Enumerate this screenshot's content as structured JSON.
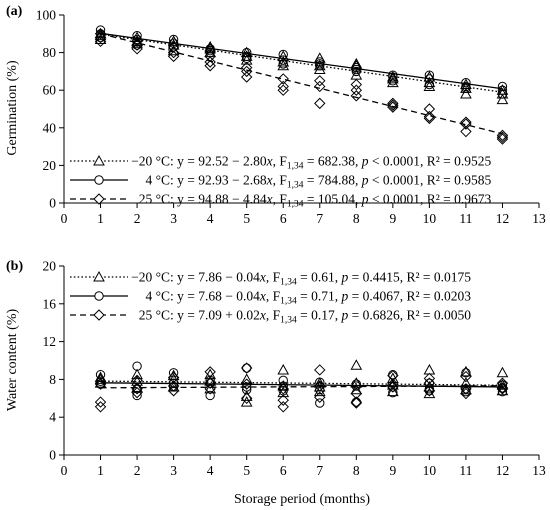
{
  "chart_data": [
    {
      "type": "scatter",
      "panel_label": "(a)",
      "ylabel": "Germination (%)",
      "xlim": [
        0,
        13
      ],
      "ylim": [
        0,
        100
      ],
      "xticks": [
        0,
        1,
        2,
        3,
        4,
        5,
        6,
        7,
        8,
        9,
        10,
        11,
        12,
        13
      ],
      "yticks": [
        0,
        20,
        40,
        60,
        80,
        100
      ],
      "series": [
        {
          "marker": "triangle",
          "line": "dotted",
          "fit": {
            "intercept": 92.52,
            "slope": -2.8
          },
          "legend": {
            "temp": "−20 °C",
            "eq": ": y = 92.52 − 2.80",
            "fs": "682.38",
            "p": "< 0.0001",
            "r2": "= 0.9525"
          },
          "x": [
            1,
            1,
            1,
            2,
            2,
            2,
            3,
            3,
            3,
            4,
            4,
            4,
            5,
            5,
            5,
            6,
            6,
            6,
            7,
            7,
            7,
            8,
            8,
            8,
            9,
            9,
            9,
            10,
            10,
            10,
            11,
            11,
            11,
            12,
            12,
            12
          ],
          "y": [
            87,
            89,
            90,
            86,
            85,
            88,
            84,
            81,
            86,
            83,
            80,
            82,
            78,
            76,
            80,
            73,
            75,
            78,
            71,
            73,
            77,
            73,
            68,
            74,
            66,
            67,
            64,
            62,
            64,
            67,
            58,
            61,
            63,
            55,
            58,
            60
          ]
        },
        {
          "marker": "circle",
          "line": "solid",
          "fit": {
            "intercept": 92.93,
            "slope": -2.68
          },
          "legend": {
            "temp": "4 °C",
            "eq": ": y = 92.93 − 2.68",
            "fs": "784.88",
            "p": "< 0.0001",
            "r2": "= 0.9585"
          },
          "x": [
            1,
            1,
            1,
            2,
            2,
            2,
            3,
            3,
            3,
            4,
            4,
            4,
            5,
            5,
            5,
            6,
            6,
            6,
            7,
            7,
            7,
            8,
            8,
            8,
            9,
            9,
            9,
            10,
            10,
            10,
            11,
            11,
            11,
            12,
            12,
            12
          ],
          "y": [
            92,
            90,
            88,
            89,
            87,
            84,
            87,
            85,
            83,
            82,
            80,
            81,
            80,
            78,
            77,
            79,
            76,
            74,
            75,
            73,
            74,
            72,
            70,
            71,
            68,
            67,
            65,
            68,
            66,
            63,
            64,
            62,
            61,
            62,
            60,
            58
          ]
        },
        {
          "marker": "diamond",
          "line": "dashed",
          "fit": {
            "intercept": 94.88,
            "slope": -4.84
          },
          "legend": {
            "temp": "25 °C",
            "eq": ": y = 94.88 − 4.84",
            "fs": "105.04",
            "p": "< 0.0001",
            "r2": "= 0.9673"
          },
          "x": [
            1,
            1,
            1,
            2,
            2,
            2,
            3,
            3,
            3,
            4,
            4,
            4,
            5,
            5,
            5,
            6,
            6,
            6,
            7,
            7,
            7,
            8,
            8,
            8,
            9,
            9,
            9,
            10,
            10,
            10,
            11,
            11,
            11,
            12,
            12,
            12
          ],
          "y": [
            88,
            86,
            90,
            84,
            82,
            86,
            80,
            78,
            83,
            75,
            73,
            78,
            70,
            72,
            67,
            66,
            62,
            60,
            65,
            62,
            53,
            63,
            57,
            60,
            53,
            51,
            52,
            50,
            46,
            45,
            43,
            38,
            42,
            36,
            34,
            35
          ]
        }
      ]
    },
    {
      "type": "scatter",
      "panel_label": "(b)",
      "ylabel": "Water content (%)",
      "xlabel": "Storage period (months)",
      "xlim": [
        0,
        13
      ],
      "ylim": [
        0,
        20
      ],
      "xticks": [
        0,
        1,
        2,
        3,
        4,
        5,
        6,
        7,
        8,
        9,
        10,
        11,
        12,
        13
      ],
      "yticks": [
        0,
        4,
        8,
        12,
        16,
        20
      ],
      "series": [
        {
          "marker": "triangle",
          "line": "dotted",
          "fit": {
            "intercept": 7.86,
            "slope": -0.04
          },
          "legend": {
            "temp": "−20 °C",
            "eq": ": y = 7.86 − 0.04",
            "fs": "0.61",
            "p": "= 0.4415",
            "r2": "= 0.0175"
          },
          "x": [
            1,
            1,
            1,
            2,
            2,
            2,
            3,
            3,
            3,
            4,
            4,
            4,
            5,
            5,
            5,
            6,
            6,
            6,
            7,
            7,
            7,
            8,
            8,
            8,
            9,
            9,
            9,
            10,
            10,
            10,
            11,
            11,
            11,
            12,
            12,
            12
          ],
          "y": [
            8.0,
            7.6,
            8.2,
            8.5,
            7.1,
            7.8,
            8.0,
            7.2,
            8.4,
            8.5,
            7.8,
            7.0,
            5.6,
            6.2,
            8.0,
            9.0,
            7.3,
            6.6,
            7.6,
            6.7,
            7.2,
            9.5,
            7.6,
            6.9,
            8.1,
            6.7,
            7.4,
            9.0,
            6.5,
            7.2,
            8.8,
            6.9,
            7.6,
            8.7,
            6.8,
            7.4
          ]
        },
        {
          "marker": "circle",
          "line": "solid",
          "fit": {
            "intercept": 7.68,
            "slope": -0.04
          },
          "legend": {
            "temp": "4 °C",
            "eq": ": y = 7.68 − 0.04",
            "fs": "0.71",
            "p": "= 0.4067",
            "r2": "= 0.0203"
          },
          "x": [
            1,
            1,
            1,
            2,
            2,
            2,
            3,
            3,
            3,
            4,
            4,
            4,
            5,
            5,
            5,
            6,
            6,
            6,
            7,
            7,
            7,
            8,
            8,
            8,
            9,
            9,
            9,
            10,
            10,
            10,
            11,
            11,
            11,
            12,
            12,
            12
          ],
          "y": [
            8.5,
            7.8,
            7.5,
            9.4,
            6.3,
            7.0,
            8.7,
            7.6,
            7.2,
            7.6,
            6.3,
            7.9,
            9.2,
            7.2,
            6.9,
            7.9,
            6.8,
            7.3,
            5.5,
            6.9,
            7.7,
            5.6,
            7.3,
            7.5,
            8.5,
            7.2,
            6.6,
            7.6,
            7.0,
            6.8,
            8.7,
            7.0,
            6.7,
            7.4,
            6.7,
            7.1
          ]
        },
        {
          "marker": "diamond",
          "line": "dashed",
          "fit": {
            "intercept": 7.09,
            "slope": 0.02
          },
          "legend": {
            "temp": "25 °C",
            "eq": ": y = 7.09 +  0.02",
            "fs": "0.17",
            "p": "= 0.6826",
            "r2": "= 0.0050"
          },
          "x": [
            1,
            1,
            1,
            2,
            2,
            2,
            3,
            3,
            3,
            4,
            4,
            4,
            5,
            5,
            5,
            6,
            6,
            6,
            7,
            7,
            7,
            8,
            8,
            8,
            9,
            9,
            9,
            10,
            10,
            10,
            11,
            11,
            11,
            12,
            12,
            12
          ],
          "y": [
            5.1,
            5.6,
            7.5,
            7.0,
            7.9,
            6.6,
            7.3,
            6.8,
            8.2,
            8.8,
            7.0,
            7.6,
            9.2,
            6.0,
            7.5,
            5.1,
            5.8,
            7.0,
            9.0,
            6.1,
            7.3,
            5.6,
            5.5,
            6.5,
            8.4,
            7.2,
            7.5,
            7.6,
            8.1,
            6.8,
            6.5,
            7.0,
            8.3,
            7.1,
            7.6,
            7.0
          ]
        }
      ]
    }
  ]
}
